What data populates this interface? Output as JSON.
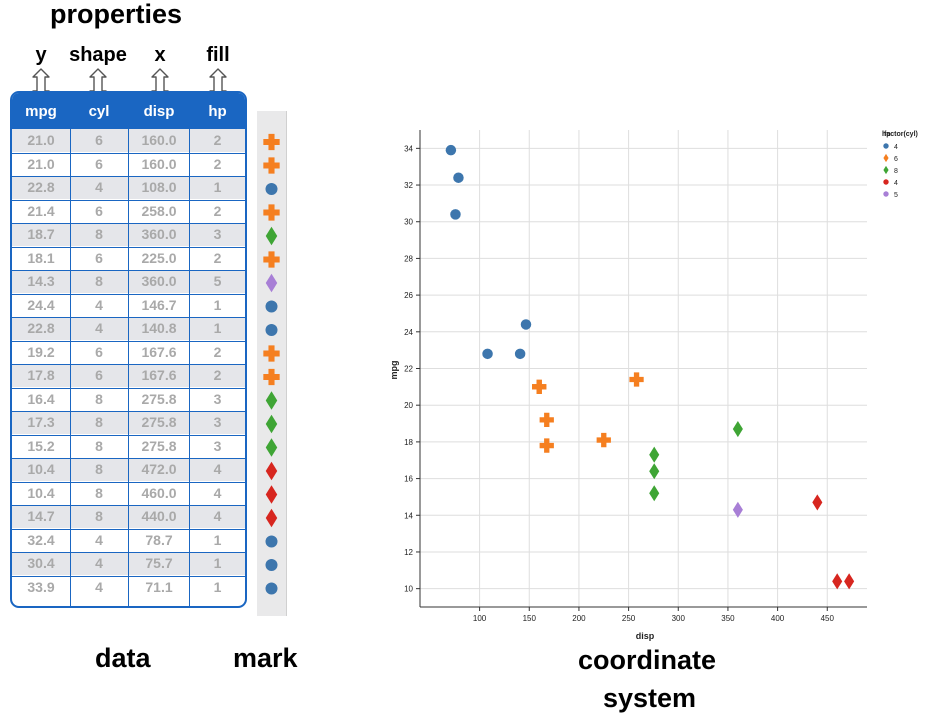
{
  "labels": {
    "properties": "properties",
    "data": "data",
    "mark": "mark",
    "coordinate_line1": "coordinate",
    "coordinate_line2": "system"
  },
  "property_mapping": [
    {
      "aesthetic": "y",
      "column": "mpg"
    },
    {
      "aesthetic": "shape",
      "column": "cyl"
    },
    {
      "aesthetic": "x",
      "column": "disp"
    },
    {
      "aesthetic": "fill",
      "column": "hp"
    }
  ],
  "colors": {
    "header_blue": "#1a66c2",
    "blue": "#3d76ad",
    "orange": "#f57f20",
    "green": "#3fa535",
    "red": "#d7261f",
    "purple": "#a87fd6"
  },
  "table": {
    "columns": [
      "mpg",
      "cyl",
      "disp",
      "hp"
    ],
    "rows": [
      {
        "mpg": "21.0",
        "cyl": "6",
        "disp": "160.0",
        "hp": "2",
        "mark": "cross-orange"
      },
      {
        "mpg": "21.0",
        "cyl": "6",
        "disp": "160.0",
        "hp": "2",
        "mark": "cross-orange"
      },
      {
        "mpg": "22.8",
        "cyl": "4",
        "disp": "108.0",
        "hp": "1",
        "mark": "circle-blue"
      },
      {
        "mpg": "21.4",
        "cyl": "6",
        "disp": "258.0",
        "hp": "2",
        "mark": "cross-orange"
      },
      {
        "mpg": "18.7",
        "cyl": "8",
        "disp": "360.0",
        "hp": "3",
        "mark": "diamond-green"
      },
      {
        "mpg": "18.1",
        "cyl": "6",
        "disp": "225.0",
        "hp": "2",
        "mark": "cross-orange"
      },
      {
        "mpg": "14.3",
        "cyl": "8",
        "disp": "360.0",
        "hp": "5",
        "mark": "diamond-purple"
      },
      {
        "mpg": "24.4",
        "cyl": "4",
        "disp": "146.7",
        "hp": "1",
        "mark": "circle-blue"
      },
      {
        "mpg": "22.8",
        "cyl": "4",
        "disp": "140.8",
        "hp": "1",
        "mark": "circle-blue"
      },
      {
        "mpg": "19.2",
        "cyl": "6",
        "disp": "167.6",
        "hp": "2",
        "mark": "cross-orange"
      },
      {
        "mpg": "17.8",
        "cyl": "6",
        "disp": "167.6",
        "hp": "2",
        "mark": "cross-orange"
      },
      {
        "mpg": "16.4",
        "cyl": "8",
        "disp": "275.8",
        "hp": "3",
        "mark": "diamond-green"
      },
      {
        "mpg": "17.3",
        "cyl": "8",
        "disp": "275.8",
        "hp": "3",
        "mark": "diamond-green"
      },
      {
        "mpg": "15.2",
        "cyl": "8",
        "disp": "275.8",
        "hp": "3",
        "mark": "diamond-green"
      },
      {
        "mpg": "10.4",
        "cyl": "8",
        "disp": "472.0",
        "hp": "4",
        "mark": "diamond-red"
      },
      {
        "mpg": "10.4",
        "cyl": "8",
        "disp": "460.0",
        "hp": "4",
        "mark": "diamond-red"
      },
      {
        "mpg": "14.7",
        "cyl": "8",
        "disp": "440.0",
        "hp": "4",
        "mark": "diamond-red"
      },
      {
        "mpg": "32.4",
        "cyl": "4",
        "disp": "78.7",
        "hp": "1",
        "mark": "circle-blue"
      },
      {
        "mpg": "30.4",
        "cyl": "4",
        "disp": "75.7",
        "hp": "1",
        "mark": "circle-blue"
      },
      {
        "mpg": "33.9",
        "cyl": "4",
        "disp": "71.1",
        "hp": "1",
        "mark": "circle-blue"
      }
    ]
  },
  "chart_data": {
    "type": "scatter",
    "xlabel": "disp",
    "ylabel": "mpg",
    "xlim": [
      40,
      490
    ],
    "ylim": [
      9,
      35
    ],
    "x_ticks": [
      100,
      150,
      200,
      250,
      300,
      350,
      400,
      450
    ],
    "y_ticks": [
      10,
      12,
      14,
      16,
      18,
      20,
      22,
      24,
      26,
      28,
      30,
      32,
      34
    ],
    "grid": true,
    "legend_placement": "top-right",
    "legend_title": "factor(cyl)",
    "legend_title_overlap": "hp",
    "legend": [
      {
        "label": "4",
        "shape": "circle",
        "color": "#3d76ad"
      },
      {
        "label": "6",
        "shape": "diamond",
        "color": "#f57f20"
      },
      {
        "label": "8",
        "shape": "diamond",
        "color": "#3fa535"
      },
      {
        "label": "4",
        "shape": "circle",
        "color": "#d7261f"
      },
      {
        "label": "5",
        "shape": "circle",
        "color": "#a87fd6"
      }
    ],
    "points": [
      {
        "x": 71.1,
        "y": 33.9,
        "shape": "circle",
        "color": "#3d76ad"
      },
      {
        "x": 78.7,
        "y": 32.4,
        "shape": "circle",
        "color": "#3d76ad"
      },
      {
        "x": 75.7,
        "y": 30.4,
        "shape": "circle",
        "color": "#3d76ad"
      },
      {
        "x": 146.7,
        "y": 24.4,
        "shape": "circle",
        "color": "#3d76ad"
      },
      {
        "x": 108.0,
        "y": 22.8,
        "shape": "circle",
        "color": "#3d76ad"
      },
      {
        "x": 140.8,
        "y": 22.8,
        "shape": "circle",
        "color": "#3d76ad"
      },
      {
        "x": 160.0,
        "y": 21.0,
        "shape": "cross",
        "color": "#f57f20"
      },
      {
        "x": 160.0,
        "y": 21.0,
        "shape": "cross",
        "color": "#f57f20"
      },
      {
        "x": 258.0,
        "y": 21.4,
        "shape": "cross",
        "color": "#f57f20"
      },
      {
        "x": 167.6,
        "y": 19.2,
        "shape": "cross",
        "color": "#f57f20"
      },
      {
        "x": 225.0,
        "y": 18.1,
        "shape": "cross",
        "color": "#f57f20"
      },
      {
        "x": 167.6,
        "y": 17.8,
        "shape": "cross",
        "color": "#f57f20"
      },
      {
        "x": 360.0,
        "y": 18.7,
        "shape": "diamond",
        "color": "#3fa535"
      },
      {
        "x": 275.8,
        "y": 17.3,
        "shape": "diamond",
        "color": "#3fa535"
      },
      {
        "x": 275.8,
        "y": 16.4,
        "shape": "diamond",
        "color": "#3fa535"
      },
      {
        "x": 275.8,
        "y": 15.2,
        "shape": "diamond",
        "color": "#3fa535"
      },
      {
        "x": 360.0,
        "y": 14.3,
        "shape": "diamond",
        "color": "#a87fd6"
      },
      {
        "x": 440.0,
        "y": 14.7,
        "shape": "diamond",
        "color": "#d7261f"
      },
      {
        "x": 460.0,
        "y": 10.4,
        "shape": "diamond",
        "color": "#d7261f"
      },
      {
        "x": 472.0,
        "y": 10.4,
        "shape": "diamond",
        "color": "#d7261f"
      }
    ]
  }
}
